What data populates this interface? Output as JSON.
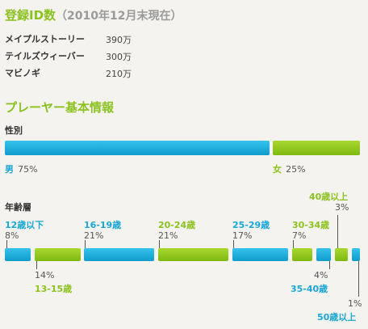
{
  "registered": {
    "title": "登録ID数",
    "subtitle": "（2010年12月末現在）",
    "games": [
      {
        "name": "メイプルストーリー",
        "value": "390万"
      },
      {
        "name": "テイルズウィーバー",
        "value": "300万"
      },
      {
        "name": "マビノギ",
        "value": "210万"
      }
    ]
  },
  "player_info": {
    "title": "プレーヤー基本情報"
  },
  "gender": {
    "title": "性別",
    "male_label": "男",
    "male_pct": "75%",
    "female_label": "女",
    "female_pct": "25%"
  },
  "age": {
    "title": "年齢層"
  },
  "colors": {
    "blue": "#1aa6d6",
    "green": "#8cc21f"
  },
  "chart_data": [
    {
      "type": "bar",
      "title": "性別",
      "categories": [
        "男",
        "女"
      ],
      "values": [
        75,
        25
      ],
      "unit": "%"
    },
    {
      "type": "bar",
      "title": "年齢層",
      "categories": [
        "12歳以下",
        "13-15歳",
        "16-19歳",
        "20-24歳",
        "25-29歳",
        "30-34歳",
        "35-40歳",
        "40歳以上",
        "50歳以上"
      ],
      "values": [
        8,
        14,
        21,
        21,
        17,
        7,
        4,
        3,
        1
      ],
      "labels": [
        "8%",
        "14%",
        "21%",
        "21%",
        "17%",
        "7%",
        "4%",
        "3%",
        "1%"
      ],
      "unit": "%"
    }
  ]
}
